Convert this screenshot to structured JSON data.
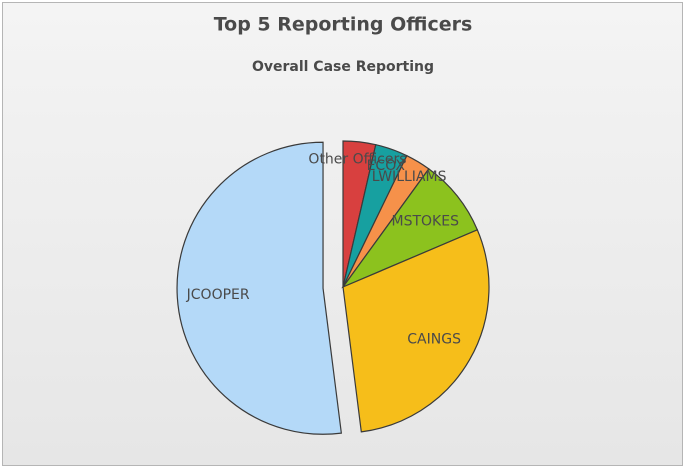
{
  "chart_data": {
    "type": "pie",
    "title": "Top 5 Reporting Officers",
    "subtitle": "Overall Case Reporting",
    "categories": [
      "Other Officers",
      "ECOX",
      "LWILLIAMS",
      "MSTOKES",
      "CAINGS",
      "JCOOPER"
    ],
    "values": [
      3.6,
      3.6,
      2.8,
      8.6,
      29.4,
      52
    ],
    "colors": [
      "#d8403f",
      "#17a0a0",
      "#f6914a",
      "#8cc21e",
      "#f6be1a",
      "#b4d9f8"
    ],
    "exploded": [
      false,
      false,
      false,
      false,
      false,
      true
    ]
  }
}
